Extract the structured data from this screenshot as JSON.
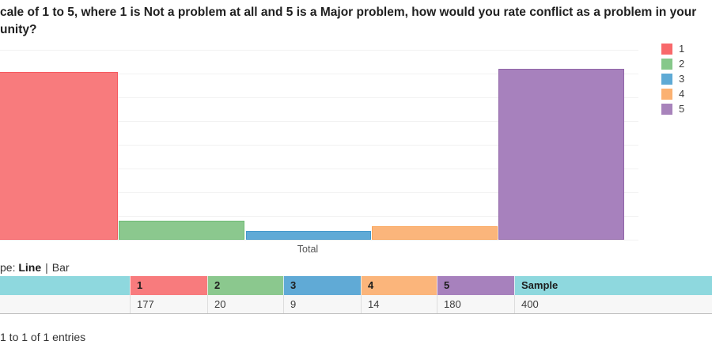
{
  "title": {
    "line1": "cale of 1 to 5, where 1 is Not a problem at all and 5 is a Major problem, how would you rate conflict as a problem in your",
    "line2": "unity?"
  },
  "chart_data": {
    "type": "bar",
    "categories": [
      "Total"
    ],
    "series": [
      {
        "name": "1",
        "values": [
          177
        ],
        "color": "#f87b7d",
        "border": "#f6595f"
      },
      {
        "name": "2",
        "values": [
          20
        ],
        "color": "#8bc88e",
        "border": "#6fbc75"
      },
      {
        "name": "3",
        "values": [
          9
        ],
        "color": "#60aad6",
        "border": "#4498cc"
      },
      {
        "name": "4",
        "values": [
          14
        ],
        "color": "#fbb57b",
        "border": "#faa458"
      },
      {
        "name": "5",
        "values": [
          180
        ],
        "color": "#a781bd",
        "border": "#9166a8"
      }
    ],
    "title": "",
    "xlabel": "Total",
    "ylabel": "",
    "ylim": [
      0,
      200
    ],
    "grid": true,
    "legend_position": "top-right"
  },
  "legend": {
    "items": [
      {
        "label": "1",
        "color": "#f8696b"
      },
      {
        "label": "2",
        "color": "#86c88a"
      },
      {
        "label": "3",
        "color": "#5eaad5"
      },
      {
        "label": "4",
        "color": "#fbb171"
      },
      {
        "label": "5",
        "color": "#a883bb"
      }
    ]
  },
  "chart_type": {
    "prefix": "pe:",
    "line_label": "Line",
    "separator": "|",
    "bar_label": "Bar"
  },
  "table": {
    "columns": [
      {
        "header": "",
        "value": "",
        "color": "#8ed8de"
      },
      {
        "header": "1",
        "value": 177,
        "color": "#f87b7d"
      },
      {
        "header": "2",
        "value": 20,
        "color": "#8bc88e"
      },
      {
        "header": "3",
        "value": 9,
        "color": "#60aad6"
      },
      {
        "header": "4",
        "value": 14,
        "color": "#fbb57b"
      },
      {
        "header": "5",
        "value": 180,
        "color": "#a781bd"
      },
      {
        "header": "Sample",
        "value": 400,
        "color": "#8ed8de"
      }
    ]
  },
  "footer": {
    "entries_text": "1 to 1 of 1 entries"
  }
}
